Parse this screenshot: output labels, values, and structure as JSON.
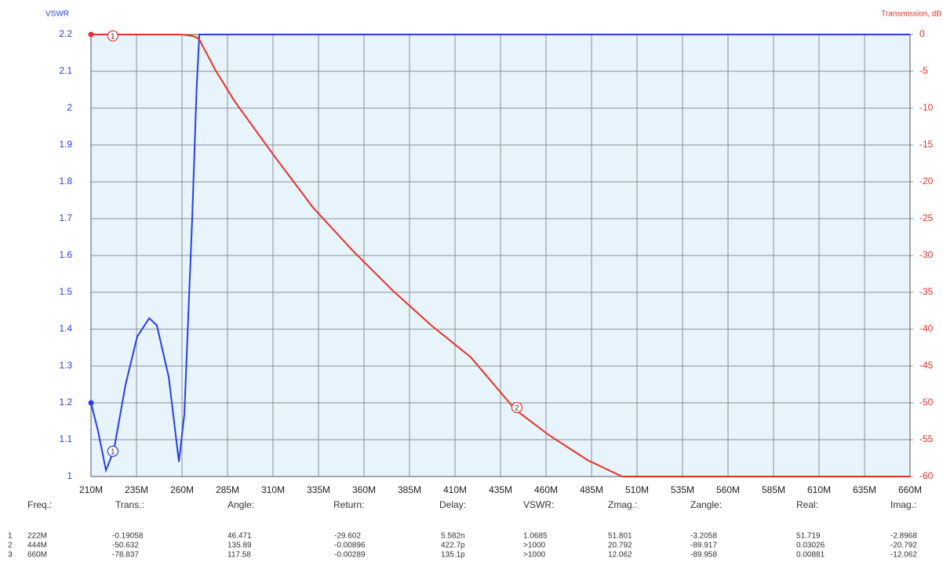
{
  "chart_data": {
    "type": "line",
    "y_label": "VSWR",
    "y2_label": "Transmission, dB",
    "x": [
      210,
      213.9,
      218.2,
      222.5,
      229,
      235.4,
      242,
      246.2,
      252.7,
      258.3,
      261.3,
      265.6,
      268,
      269.5,
      278.5,
      289,
      311,
      332,
      354,
      375.5,
      397,
      418.6,
      443,
      461.7,
      483,
      501.8,
      520,
      660
    ],
    "series": [
      {
        "name": "VSWR",
        "color": "#2a3ee6",
        "values": [
          1.2,
          1.123,
          1.017,
          1.07,
          1.25,
          1.38,
          1.43,
          1.41,
          1.27,
          1.04,
          1.17,
          1.7,
          2.05,
          2.2,
          2.2,
          2.2,
          2.2,
          2.2,
          2.2,
          2.2,
          2.2,
          2.2,
          2.2,
          2.2,
          2.2,
          2.2,
          2.2,
          2.2
        ]
      },
      {
        "name": "Transmission",
        "color": "#e8312a",
        "axis": "y2",
        "values": [
          0,
          0,
          0,
          0,
          0,
          0,
          0,
          0,
          0,
          0,
          -0.05,
          -0.2,
          -0.4,
          -0.7,
          -4.9,
          -9.1,
          -16.6,
          -23.5,
          -29.4,
          -34.7,
          -39.5,
          -43.8,
          -50.9,
          -54.4,
          -57.8,
          -60,
          -60,
          -60
        ]
      }
    ],
    "markers": [
      {
        "label": "1",
        "x": 222,
        "y": -0.19058,
        "axis": "y2",
        "color": "#e8312a"
      },
      {
        "label": "1",
        "x": 222,
        "y": 1.0685,
        "color": "#2a3ee6"
      },
      {
        "label": "2",
        "x": 444,
        "y": -50.632,
        "axis": "y2",
        "color": "#e8312a"
      }
    ],
    "xlim": [
      210,
      660
    ],
    "xticks": [
      {
        "value": 210,
        "label": "210M"
      },
      {
        "value": 235,
        "label": "235M"
      },
      {
        "value": 260,
        "label": "260M"
      },
      {
        "value": 285,
        "label": "285M"
      },
      {
        "value": 310,
        "label": "310M"
      },
      {
        "value": 335,
        "label": "335M"
      },
      {
        "value": 360,
        "label": "360M"
      },
      {
        "value": 385,
        "label": "385M"
      },
      {
        "value": 410,
        "label": "410M"
      },
      {
        "value": 435,
        "label": "435M"
      },
      {
        "value": 460,
        "label": "460M"
      },
      {
        "value": 485,
        "label": "485M"
      },
      {
        "value": 510,
        "label": "510M"
      },
      {
        "value": 535,
        "label": "535M"
      },
      {
        "value": 560,
        "label": "560M"
      },
      {
        "value": 585,
        "label": "585M"
      },
      {
        "value": 610,
        "label": "610M"
      },
      {
        "value": 635,
        "label": "635M"
      },
      {
        "value": 660,
        "label": "660M"
      }
    ],
    "ylim": [
      1,
      2.2
    ],
    "yticks": [
      1,
      1.1,
      1.2,
      1.3,
      1.4,
      1.5,
      1.6,
      1.7,
      1.8,
      1.9,
      2,
      2.1,
      2.2
    ],
    "y2lim": [
      -60,
      0
    ],
    "y2ticks": [
      -60,
      -55,
      -50,
      -45,
      -40,
      -35,
      -30,
      -25,
      -20,
      -15,
      -10,
      -5,
      0
    ],
    "grid": true,
    "y_color": "#2a3ee6",
    "y2_color": "#e8312a"
  },
  "table": {
    "header": [
      "Freq.:",
      "Trans.:",
      "Angle:",
      "Return:",
      "Delay:",
      "VSWR:",
      "Zmag.:",
      "Zangle:",
      "Real:",
      "Imag.:"
    ],
    "rows": [
      [
        "1",
        "222M",
        "-0.19058",
        "46.471",
        "-29.602",
        "5.582n",
        "1.0685",
        "51.801",
        "-3.2058",
        "51.719",
        "-2.8968"
      ],
      [
        "2",
        "444M",
        "-50.632",
        "135.89",
        "-0.00896",
        "422.7p",
        ">1000",
        "20.792",
        "-89.917",
        "0.03026",
        "-20.792"
      ],
      [
        "3",
        "660M",
        "-78.837",
        "117.58",
        "-0.00289",
        "135.1p",
        ">1000",
        "12.062",
        "-89.958",
        "0.00881",
        "-12.062"
      ]
    ]
  }
}
